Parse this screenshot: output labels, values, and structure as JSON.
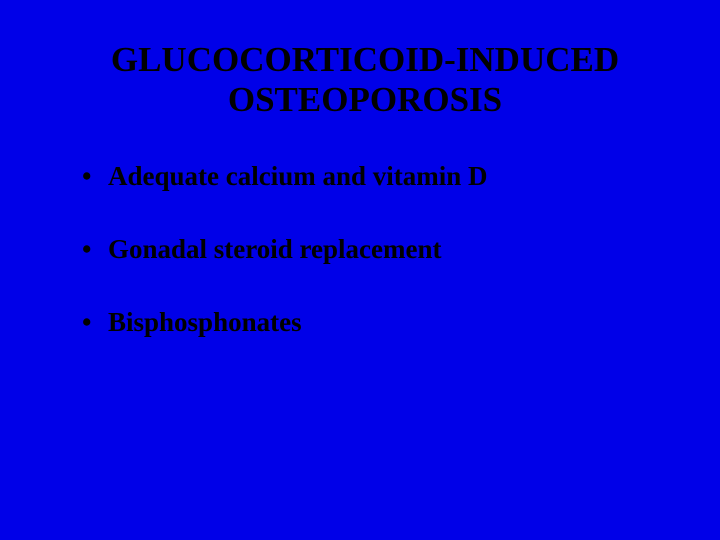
{
  "slide": {
    "background_color": "#0000e8",
    "text_color": "#000000",
    "title_line1": "GLUCOCORTICOID-INDUCED",
    "title_line2": "OSTEOPOROSIS",
    "title_fontsize": 35,
    "bullet_fontsize": 27,
    "font_family": "Times New Roman",
    "bullets": [
      "Adequate calcium and vitamin D",
      "Gonadal steroid replacement",
      "Bisphosphonates"
    ]
  }
}
